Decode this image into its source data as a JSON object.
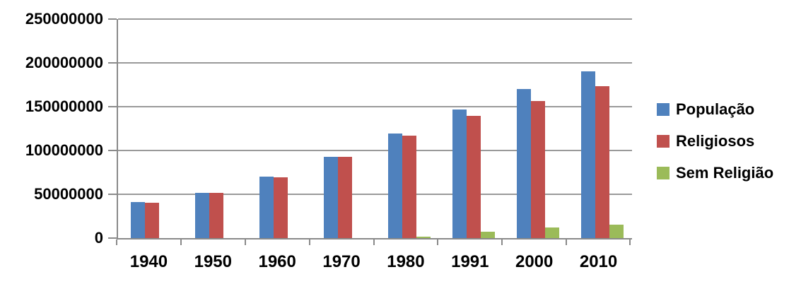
{
  "chart_data": {
    "type": "bar",
    "title": "",
    "xlabel": "",
    "ylabel": "",
    "categories": [
      "1940",
      "1950",
      "1960",
      "1970",
      "1980",
      "1991",
      "2000",
      "2010"
    ],
    "series": [
      {
        "name": "População",
        "color": "#4F81BD",
        "values": [
          41200000,
          51900000,
          70100000,
          93100000,
          119000000,
          146800000,
          169800000,
          190700000
        ]
      },
      {
        "name": "Religiosos",
        "color": "#C0504D",
        "values": [
          40200000,
          51400000,
          69500000,
          92500000,
          116800000,
          139200000,
          156600000,
          173200000
        ]
      },
      {
        "name": "Sem Religião",
        "color": "#9BBB59",
        "values": [
          0,
          0,
          0,
          0,
          1900000,
          6900000,
          12500000,
          15300000
        ]
      }
    ],
    "ylim": [
      0,
      250000000
    ],
    "y_tick_step": 50000000,
    "y_tick_labels": [
      "0",
      "50000000",
      "100000000",
      "150000000",
      "200000000",
      "250000000"
    ],
    "grid": true,
    "legend_position": "right",
    "axis_color": "#8a8a8a",
    "gridline_color": "#9a9a9a",
    "background_color": "#ffffff",
    "text_color": "#000000"
  }
}
